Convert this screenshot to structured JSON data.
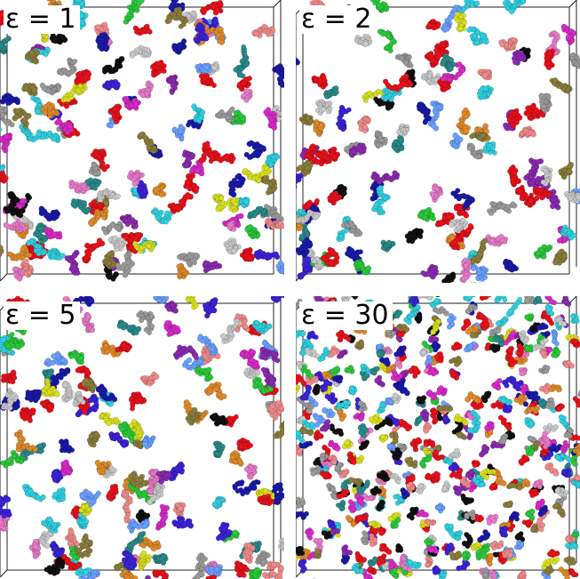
{
  "figure": {
    "panels": [
      {
        "label": "ε = 1",
        "cluster_count": 150,
        "cluster_size": 26
      },
      {
        "label": "ε = 2",
        "cluster_count": 125,
        "cluster_size": 26
      },
      {
        "label": "ε = 5",
        "cluster_count": 150,
        "cluster_size": 26
      },
      {
        "label": "ε = 30",
        "cluster_count": 500,
        "cluster_size": 8
      }
    ],
    "palette": [
      "#e8111b",
      "#e8111b",
      "#e8111b",
      "#2fd0e0",
      "#2fd0e0",
      "#d8e01c",
      "#8a7d3c",
      "#3c22d8",
      "#e87ac8",
      "#e08a2a",
      "#2ac83a",
      "#d82ac8",
      "#9a9a9a",
      "#f08a8a",
      "#1a1aa8",
      "#101010",
      "#6aa0ff",
      "#c8c8c8",
      "#2a8a8a",
      "#8a2ab0"
    ]
  }
}
